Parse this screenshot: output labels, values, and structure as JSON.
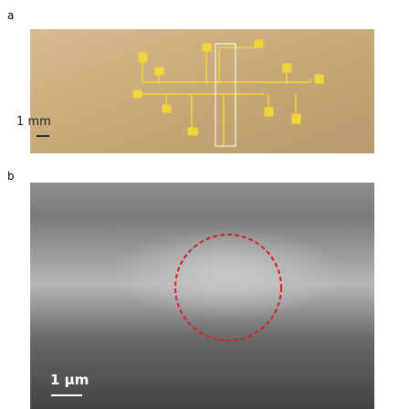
{
  "panels": [
    {
      "label": "a",
      "scale_bar": "1 mm"
    },
    {
      "label": "b",
      "scale_bar": "1 μm"
    }
  ]
}
